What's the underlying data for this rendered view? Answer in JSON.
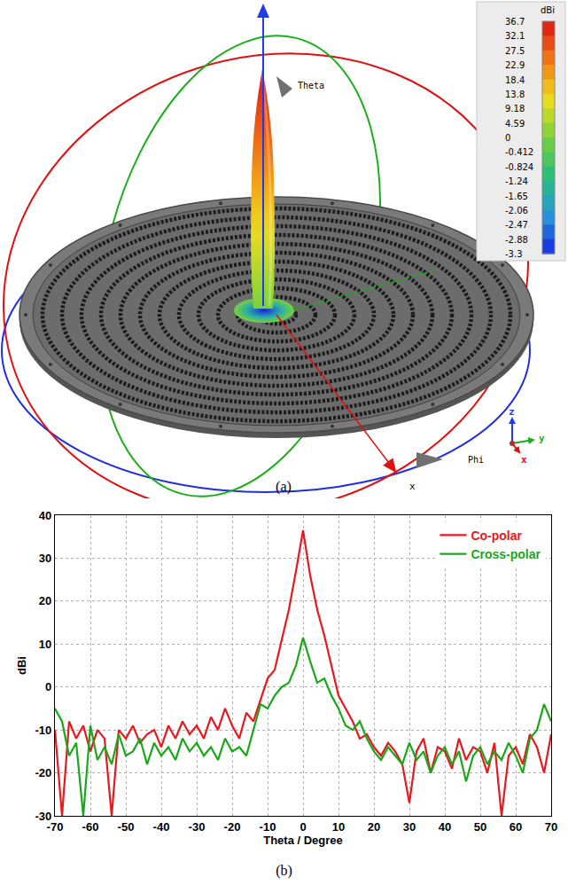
{
  "panel_labels": [
    "(a)",
    "(b)"
  ],
  "pattern_3d": {
    "colorbar": {
      "title": "dBi",
      "ticks": [
        36.7,
        32.1,
        27.5,
        22.9,
        18.4,
        13.8,
        9.18,
        4.59,
        0,
        -0.412,
        -0.824,
        -1.24,
        -1.65,
        -2.06,
        -2.47,
        -2.88,
        -3.3
      ]
    },
    "axis_labels": {
      "theta": "Theta",
      "phi": "Phi",
      "x": "x",
      "y": "y",
      "z": "z"
    }
  },
  "chart_data": {
    "type": "line",
    "x_label": "Theta / Degree",
    "y_label": "dBi",
    "x": [
      -70,
      -68,
      -66,
      -64,
      -62,
      -60,
      -58,
      -56,
      -54,
      -52,
      -50,
      -48,
      -46,
      -44,
      -42,
      -40,
      -38,
      -36,
      -34,
      -32,
      -30,
      -28,
      -26,
      -24,
      -22,
      -20,
      -18,
      -16,
      -14,
      -12,
      -10,
      -8,
      -6,
      -4,
      -2,
      0,
      2,
      4,
      6,
      8,
      10,
      12,
      14,
      16,
      18,
      20,
      22,
      24,
      26,
      28,
      30,
      32,
      34,
      36,
      38,
      40,
      42,
      44,
      46,
      48,
      50,
      52,
      54,
      56,
      58,
      60,
      62,
      64,
      66,
      68,
      70
    ],
    "series": [
      {
        "name": "Co-polar",
        "color": "#e8191e",
        "values": [
          -10,
          -30,
          -8,
          -12,
          -9,
          -15,
          -10,
          -12,
          -30,
          -10,
          -12,
          -9,
          -13,
          -11,
          -10,
          -14,
          -9,
          -12,
          -8,
          -11,
          -9,
          -12,
          -7,
          -10,
          -5,
          -9,
          -12,
          -6,
          -8,
          -3,
          2,
          4,
          11,
          18,
          27,
          36.5,
          26,
          18,
          12,
          5,
          -2,
          -5,
          -8,
          -12,
          -11,
          -14,
          -16,
          -13,
          -15,
          -18,
          -27,
          -15,
          -12,
          -20,
          -14,
          -15,
          -19,
          -12,
          -17,
          -14,
          -15,
          -20,
          -13,
          -30,
          -16,
          -14,
          -18,
          -11,
          -14,
          -20,
          -11
        ]
      },
      {
        "name": "Cross-polar",
        "color": "#1aa81a",
        "values": [
          -5,
          -8,
          -16,
          -13,
          -30,
          -9,
          -17,
          -14,
          -18,
          -11,
          -16,
          -15,
          -12,
          -18,
          -13,
          -16,
          -14,
          -17,
          -12,
          -15,
          -13,
          -16,
          -14,
          -17,
          -12,
          -15,
          -14,
          -16,
          -10,
          -4,
          -5,
          -2,
          0,
          1,
          5,
          11.5,
          6,
          1,
          2,
          -2,
          -5,
          -9,
          -10,
          -8,
          -12,
          -15,
          -17,
          -14,
          -16,
          -18,
          -13,
          -17,
          -15,
          -20,
          -16,
          -14,
          -18,
          -15,
          -22,
          -16,
          -14,
          -18,
          -15,
          -17,
          -13,
          -16,
          -20,
          -12,
          -10,
          -4,
          -8
        ]
      }
    ],
    "xlim": [
      -70,
      70
    ],
    "xticks": [
      -70,
      -60,
      -50,
      -40,
      -30,
      -20,
      -10,
      0,
      10,
      20,
      30,
      40,
      50,
      60,
      70
    ],
    "ylim": [
      -30,
      40
    ],
    "yticks": [
      -30,
      -20,
      -10,
      0,
      10,
      20,
      30,
      40
    ],
    "grid": true,
    "legend": "top right"
  }
}
